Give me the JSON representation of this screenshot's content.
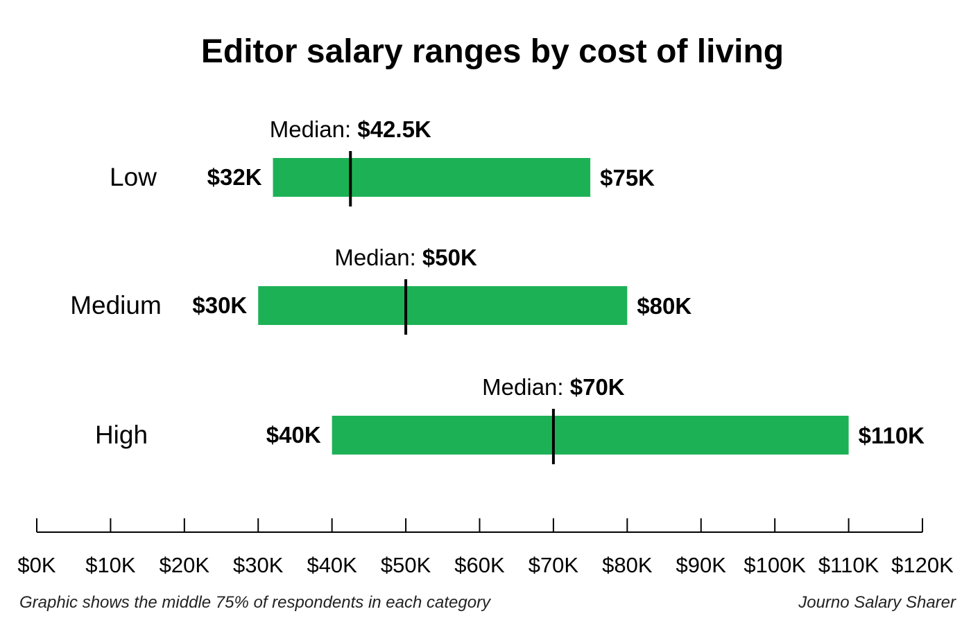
{
  "chart_data": {
    "type": "bar",
    "title": "Editor salary ranges by cost of living",
    "categories": [
      "Low",
      "Medium",
      "High"
    ],
    "ranges": [
      {
        "category": "Low",
        "low": 32,
        "high": 75,
        "median": 42.5,
        "low_label": "$32K",
        "high_label": "$75K",
        "median_prefix": "Median: ",
        "median_label": "$42.5K"
      },
      {
        "category": "Medium",
        "low": 30,
        "high": 80,
        "median": 50,
        "low_label": "$30K",
        "high_label": "$80K",
        "median_prefix": "Median: ",
        "median_label": "$50K"
      },
      {
        "category": "High",
        "low": 40,
        "high": 110,
        "median": 70,
        "low_label": "$40K",
        "high_label": "$110K",
        "median_prefix": "Median: ",
        "median_label": "$70K"
      }
    ],
    "xlim": [
      0,
      120
    ],
    "xticks": [
      0,
      10,
      20,
      30,
      40,
      50,
      60,
      70,
      80,
      90,
      100,
      110,
      120
    ],
    "xtick_labels": [
      "$0K",
      "$10K",
      "$20K",
      "$30K",
      "$40K",
      "$50K",
      "$60K",
      "$70K",
      "$80K",
      "$90K",
      "$100K",
      "$110K",
      "$120K"
    ],
    "bar_color": "#1db156",
    "grid": false,
    "legend": "none"
  },
  "footer": {
    "note": "Graphic shows the middle 75% of respondents in each category",
    "source": "Journo Salary Sharer"
  }
}
